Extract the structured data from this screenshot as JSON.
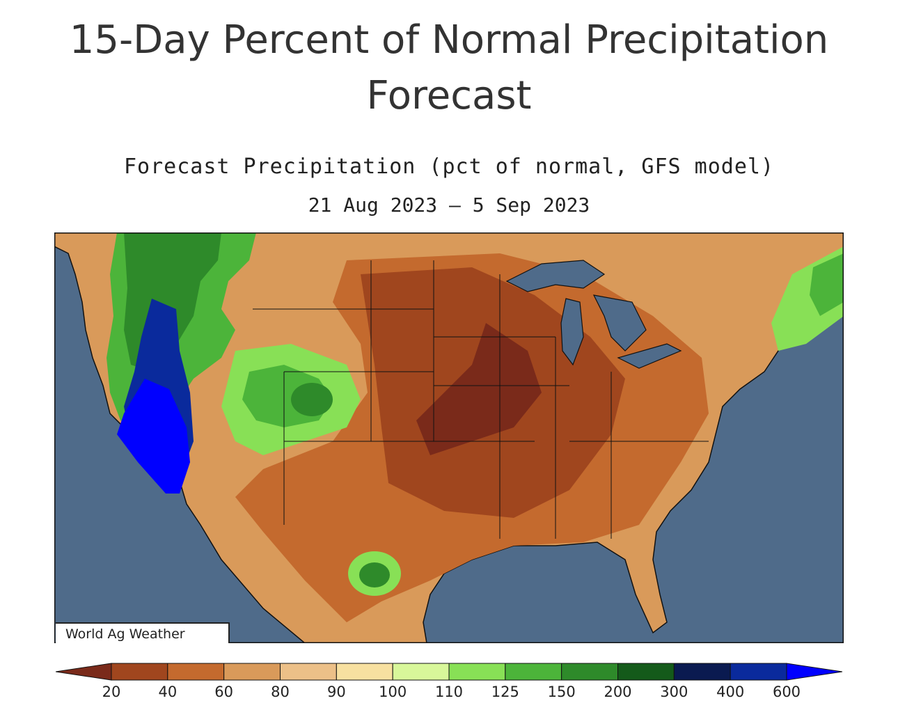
{
  "page": {
    "title": "15-Day Percent of Normal Precipitation Forecast"
  },
  "map": {
    "title": "Forecast Precipitation (pct of normal, GFS model)",
    "date_range": "21 Aug 2023 – 5 Sep 2023",
    "credit": "World Ag Weather",
    "region": "Contiguous United States",
    "ocean_color": "#4f6b8a",
    "land_outline_color": "#111111"
  },
  "legend": {
    "colors": [
      "#7a2a1a",
      "#a0461e",
      "#c46a2e",
      "#d99a5a",
      "#ecc088",
      "#f7e0a0",
      "#d8f79a",
      "#88e056",
      "#4cb43a",
      "#2e8a2a",
      "#145a1a",
      "#0a1a50",
      "#0a2a9c",
      "#0000ff"
    ],
    "ticks": [
      "20",
      "40",
      "60",
      "80",
      "90",
      "100",
      "110",
      "125",
      "150",
      "200",
      "300",
      "400",
      "600"
    ]
  },
  "regions": [
    {
      "name": "interior-west-dry",
      "color": "#d99a5a"
    },
    {
      "name": "plains-dry",
      "color": "#c46a2e"
    },
    {
      "name": "midwest-very-dry",
      "color": "#a0461e"
    },
    {
      "name": "central-core-extreme-dry",
      "color": "#7a2a1a"
    },
    {
      "name": "pacific-northwest-wet",
      "color": "#2e8a2a"
    },
    {
      "name": "sierra-nevada-very-wet",
      "color": "#0a2a9c"
    },
    {
      "name": "southern-california-extreme-wet",
      "color": "#0000ff"
    },
    {
      "name": "four-corners-wet",
      "color": "#4cb43a"
    },
    {
      "name": "new-england-wet",
      "color": "#88e056"
    },
    {
      "name": "south-texas-wet",
      "color": "#4cb43a"
    }
  ]
}
